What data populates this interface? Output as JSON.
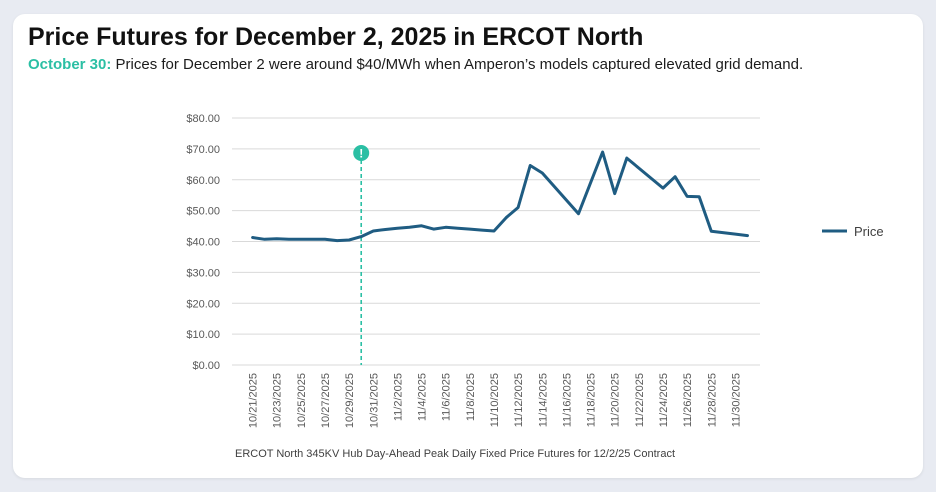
{
  "header": {
    "title": "Price Futures for December 2, 2025 in ERCOT North",
    "subtitle_date": "October 30:",
    "subtitle_text": " Prices for December 2 were around $40/MWh when Amperon’s models captured elevated grid demand."
  },
  "colors": {
    "line": "#1f5c82",
    "marker": "#2bbfa4",
    "grid": "#d9d9d9",
    "axis_text": "#595959"
  },
  "chart_data": {
    "type": "line",
    "series": [
      {
        "name": "Price",
        "color": "#1f5c82",
        "points": [
          [
            "2025-10-21",
            41.3
          ],
          [
            "2025-10-22",
            40.7
          ],
          [
            "2025-10-23",
            40.9
          ],
          [
            "2025-10-24",
            40.7
          ],
          [
            "2025-10-25",
            40.7
          ],
          [
            "2025-10-26",
            40.7
          ],
          [
            "2025-10-27",
            40.7
          ],
          [
            "2025-10-28",
            40.3
          ],
          [
            "2025-10-29",
            40.5
          ],
          [
            "2025-10-30",
            41.6
          ],
          [
            "2025-10-31",
            43.4
          ],
          [
            "2025-11-01",
            43.9
          ],
          [
            "2025-11-02",
            44.3
          ],
          [
            "2025-11-03",
            44.6
          ],
          [
            "2025-11-04",
            45.1
          ],
          [
            "2025-11-05",
            44.0
          ],
          [
            "2025-11-06",
            44.6
          ],
          [
            "2025-11-07",
            44.3
          ],
          [
            "2025-11-08",
            44.0
          ],
          [
            "2025-11-09",
            43.7
          ],
          [
            "2025-11-10",
            43.4
          ],
          [
            "2025-11-11",
            47.7
          ],
          [
            "2025-11-12",
            51.0
          ],
          [
            "2025-11-13",
            64.6
          ],
          [
            "2025-11-14",
            62.2
          ],
          [
            "2025-11-17",
            49.0
          ],
          [
            "2025-11-19",
            69.0
          ],
          [
            "2025-11-20",
            55.5
          ],
          [
            "2025-11-21",
            67.0
          ],
          [
            "2025-11-24",
            57.3
          ],
          [
            "2025-11-25",
            61.0
          ],
          [
            "2025-11-26",
            54.6
          ],
          [
            "2025-11-27",
            54.5
          ],
          [
            "2025-11-28",
            43.3
          ],
          [
            "2025-11-30",
            42.4
          ],
          [
            "2025-12-01",
            41.9
          ]
        ]
      }
    ],
    "x_tick_labels": [
      "10/21/2025",
      "10/23/2025",
      "10/25/2025",
      "10/27/2025",
      "10/29/2025",
      "10/31/2025",
      "11/2/2025",
      "11/4/2025",
      "11/6/2025",
      "11/8/2025",
      "11/10/2025",
      "11/12/2025",
      "11/14/2025",
      "11/16/2025",
      "11/18/2025",
      "11/20/2025",
      "11/22/2025",
      "11/24/2025",
      "11/26/2025",
      "11/28/2025",
      "11/30/2025"
    ],
    "x_range": [
      "2025-10-20",
      "2025-12-01"
    ],
    "y_tick_labels": [
      "$0.00",
      "$10.00",
      "$20.00",
      "$30.00",
      "$40.00",
      "$50.00",
      "$60.00",
      "$70.00",
      "$80.00"
    ],
    "ylim": [
      0,
      80
    ],
    "y_grid": true,
    "legend_position": "right",
    "annotation": {
      "x": "2025-10-30",
      "symbol": "!"
    },
    "caption": "ERCOT North 345KV Hub Day-Ahead Peak Daily Fixed Price Futures for 12/2/25 Contract"
  }
}
